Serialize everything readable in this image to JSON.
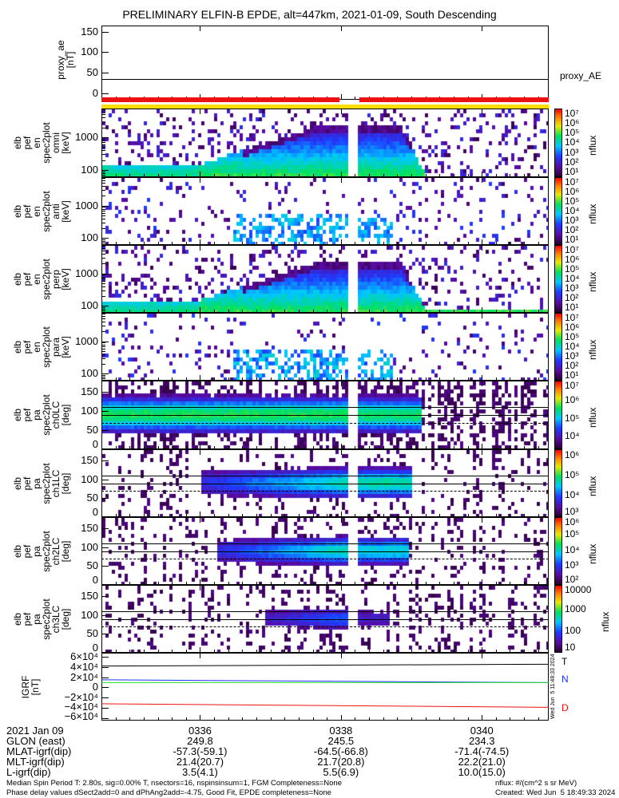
{
  "title": "PRELIMINARY ELFIN-B EPDE, alt=447km, 2021-01-09, South Descending",
  "colors": {
    "red_bar": "#ee1111",
    "yellow_bar": "#ffdd00",
    "igrf_T": "#000000",
    "igrf_N": "#1a33ff",
    "igrf_N2": "#22dd22",
    "igrf_D": "#ee1111"
  },
  "proxy_ae": {
    "ylabel": "proxy_ae\n[nT]",
    "ticks": [
      "150",
      "100",
      "50",
      "0"
    ],
    "tick_values": [
      150,
      100,
      50,
      0
    ],
    "ylim": [
      -16,
      165
    ],
    "value": 35,
    "legend": "proxy_AE"
  },
  "energy_ticks": [
    "1000",
    "100"
  ],
  "energy_tick_values": [
    1000,
    100
  ],
  "energy_range_keV": [
    60,
    7600
  ],
  "pa_ticks": [
    "150",
    "100",
    "50",
    "0"
  ],
  "pa_tick_values": [
    150,
    100,
    50,
    0
  ],
  "pa_range_deg": [
    0,
    180
  ],
  "cbar_unit": "nflux",
  "panels": [
    {
      "id": "omni",
      "kind": "energy",
      "ylabel": "elb\npef\nen\nspec2plot\nomni\n[keV]",
      "cbar_ticks": [
        "10⁷",
        "10⁶",
        "10⁵",
        "10⁴",
        "10³",
        "10²",
        "10¹"
      ],
      "cbar_tick_log": [
        7,
        6,
        5,
        4,
        3,
        2,
        1
      ],
      "cbar_log_range": [
        0.8,
        7.1
      ]
    },
    {
      "id": "anti",
      "kind": "energy",
      "ylabel": "elb\npef\nen\nspec2plot\nanti\n[keV]",
      "cbar_ticks": [
        "10⁷",
        "10⁶",
        "10⁵",
        "10⁴",
        "10³",
        "10²",
        "10¹"
      ],
      "cbar_tick_log": [
        7,
        6,
        5,
        4,
        3,
        2,
        1
      ],
      "cbar_log_range": [
        0.8,
        7.1
      ]
    },
    {
      "id": "perp",
      "kind": "energy",
      "ylabel": "elb\npef\nen\nspec2plot\nperp\n[keV]",
      "cbar_ticks": [
        "10⁷",
        "10⁶",
        "10⁵",
        "10⁴",
        "10³",
        "10²",
        "10¹"
      ],
      "cbar_tick_log": [
        7,
        6,
        5,
        4,
        3,
        2,
        1
      ],
      "cbar_log_range": [
        0.8,
        7.1
      ]
    },
    {
      "id": "para",
      "kind": "energy",
      "ylabel": "elb\npef\nen\nspec2plot\npara\n[keV]",
      "cbar_ticks": [
        "10⁷",
        "10⁶",
        "10⁵",
        "10⁴",
        "10³",
        "10²",
        "10¹"
      ],
      "cbar_tick_log": [
        7,
        6,
        5,
        4,
        3,
        2,
        1
      ],
      "cbar_log_range": [
        0.8,
        7.1
      ]
    },
    {
      "id": "ch0LC",
      "kind": "pa",
      "ylabel": "elb\npef\npa\nspec2plot\nch0LC\n[deg]",
      "cbar_ticks": [
        "10⁷",
        "10⁶",
        "10⁵",
        "10⁴"
      ],
      "cbar_tick_log": [
        7,
        6,
        5,
        4
      ],
      "cbar_log_range": [
        3.3,
        7.1
      ]
    },
    {
      "id": "ch1LC",
      "kind": "pa",
      "ylabel": "elb\npef\npa\nspec2plot\nch1LC\n[deg]",
      "cbar_ticks": [
        "10⁶",
        "10⁵",
        "10⁴",
        "10³"
      ],
      "cbar_tick_log": [
        6,
        5,
        4,
        3
      ],
      "cbar_log_range": [
        2.9,
        6.3
      ]
    },
    {
      "id": "ch2LC",
      "kind": "pa",
      "ylabel": "elb\npef\npa\nspec2plot\nch2LC\n[deg]",
      "cbar_ticks": [
        "10⁶",
        "10⁵",
        "10⁴",
        "10³",
        "10²"
      ],
      "cbar_tick_log": [
        6,
        5,
        4,
        3,
        2
      ],
      "cbar_log_range": [
        1.8,
        6.1
      ]
    },
    {
      "id": "ch3LC",
      "kind": "pa",
      "ylabel": "elb\npef\npa\nspec2plot\nch3LC\n[deg]",
      "cbar_ticks": [
        "10000",
        "1000",
        "100",
        "10"
      ],
      "cbar_tick_log": [
        4,
        3,
        2,
        1
      ],
      "cbar_log_range": [
        0.95,
        4.2
      ]
    }
  ],
  "igrf": {
    "ylabel": "IGRF\n[nT]",
    "ticks": [
      "6×10⁴",
      "4×10⁴",
      "2×10⁴",
      "0",
      "−2×10⁴",
      "−4×10⁴",
      "−6×10⁴"
    ],
    "tick_values": [
      60000,
      40000,
      20000,
      0,
      -20000,
      -40000,
      -60000
    ],
    "ylim": [
      -65000,
      68000
    ],
    "series": [
      {
        "name": "T",
        "start": 42000,
        "end": 45500
      },
      {
        "name": "N",
        "start": 15000,
        "end": 9500
      },
      {
        "name": "N",
        "start": 9500,
        "end": 9500
      },
      {
        "name": "D",
        "start": -32000,
        "end": -39000
      }
    ],
    "legend": [
      "T",
      "N",
      "D"
    ],
    "stamp": "Wed Jun  5 11:48:33 2024"
  },
  "time_axis": {
    "ticks": [
      "0336",
      "0338",
      "0340"
    ],
    "tick_minutes": [
      0.0,
      2.0,
      4.0
    ],
    "range_minutes": [
      -1.4,
      4.95
    ],
    "gap_minutes": [
      2.05,
      2.2
    ]
  },
  "ephemeris": {
    "labels": [
      "2021 Jan 09",
      "GLON (east)",
      "MLAT-igrf(dip)",
      "MLT-igrf(dip)",
      "L-igrf(dip)"
    ],
    "columns": [
      [
        "0336",
        "249.8",
        "-57.3(-59.1)",
        "21.4(20.7)",
        "3.5(4.1)"
      ],
      [
        "0338",
        "245.5",
        "-64.5(-66.8)",
        "21.7(20.8)",
        "5.5(6.9)"
      ],
      [
        "0340",
        "234.3",
        "-71.4(-74.5)",
        "22.2(21.0)",
        "10.0(15.0)"
      ]
    ]
  },
  "footer": {
    "line1": "Median Spin Period T: 2.80s, sig=0.00% T, nsectors=16, nspinsinsum=1, FGM Completeness=None",
    "line2": "Phase delay values dSect2add=0 and dPhAng2add=-4.75, Good Fit, EPDE completeness=None",
    "units": "nflux: #/(cm^2 s sr MeV)",
    "created": "Created: Wed Jun  5 18:49:33 2024"
  }
}
